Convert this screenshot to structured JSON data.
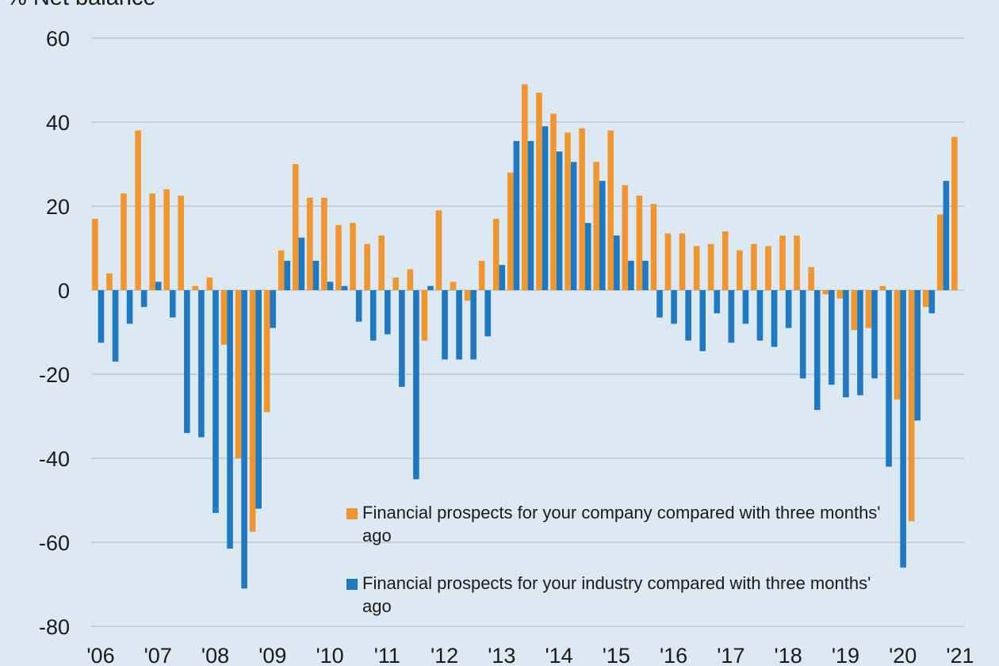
{
  "chart_data": {
    "type": "bar",
    "title": "",
    "ylabel": "% Net balance",
    "xlabel": "",
    "ylim": [
      -80,
      60
    ],
    "yticks": [
      60,
      40,
      20,
      0,
      -20,
      -40,
      -60,
      -80
    ],
    "grid": true,
    "legend_position": "bottom-right inside plot",
    "year_labels": [
      "'06",
      "'07",
      "'08",
      "'09",
      "'10",
      "'11",
      "'12",
      "'13",
      "'14",
      "'15",
      "'16",
      "'17",
      "'18",
      "'19",
      "'20",
      "'21"
    ],
    "categories": [
      "2006 Q1",
      "2006 Q2",
      "2006 Q3",
      "2006 Q4",
      "2007 Q1",
      "2007 Q2",
      "2007 Q3",
      "2007 Q4",
      "2008 Q1",
      "2008 Q2",
      "2008 Q3",
      "2008 Q4",
      "2009 Q1",
      "2009 Q2",
      "2009 Q3",
      "2009 Q4",
      "2010 Q1",
      "2010 Q2",
      "2010 Q3",
      "2010 Q4",
      "2011 Q1",
      "2011 Q2",
      "2011 Q3",
      "2011 Q4",
      "2012 Q1",
      "2012 Q2",
      "2012 Q3",
      "2012 Q4",
      "2013 Q1",
      "2013 Q2",
      "2013 Q3",
      "2013 Q4",
      "2014 Q1",
      "2014 Q2",
      "2014 Q3",
      "2014 Q4",
      "2015 Q1",
      "2015 Q2",
      "2015 Q3",
      "2015 Q4",
      "2016 Q1",
      "2016 Q2",
      "2016 Q3",
      "2016 Q4",
      "2017 Q1",
      "2017 Q2",
      "2017 Q3",
      "2017 Q4",
      "2018 Q1",
      "2018 Q2",
      "2018 Q3",
      "2018 Q4",
      "2019 Q1",
      "2019 Q2",
      "2019 Q3",
      "2019 Q4",
      "2020 Q1",
      "2020 Q2",
      "2020 Q3",
      "2020 Q4",
      "2021 Q1"
    ],
    "series": [
      {
        "name": "Financial prospects for your company compared with three months' ago",
        "color": "#f0962e",
        "values": [
          17,
          4,
          23,
          38,
          23,
          24,
          22.5,
          1,
          3,
          -13,
          -40,
          -57.5,
          -29,
          9.5,
          30,
          22,
          22,
          15.5,
          16,
          11,
          13,
          3,
          5,
          -12,
          19,
          2,
          -2.5,
          7,
          17,
          28,
          49,
          47,
          42,
          37.5,
          38.5,
          30.5,
          38,
          25,
          22.5,
          20.5,
          13.5,
          13.5,
          10.5,
          11,
          14,
          9.5,
          11,
          10.5,
          13,
          13,
          5.5,
          -1,
          -2,
          -9.5,
          -9,
          1,
          -26,
          -55,
          -4,
          18,
          36.5
        ]
      },
      {
        "name": "Financial prospects for your industry compared with three months' ago",
        "color": "#1e78c2",
        "values": [
          -12.5,
          -17,
          -8,
          -4,
          2,
          -6.5,
          -34,
          -35,
          -53,
          -61.5,
          -71,
          -52,
          -9,
          7,
          12.5,
          7,
          2,
          1,
          -7.5,
          -12,
          -10.5,
          -23,
          -45,
          1,
          -16.5,
          -16.5,
          -16.5,
          -11,
          6,
          35.5,
          35.5,
          39,
          33,
          30.5,
          16,
          26,
          13,
          7,
          7,
          -6.5,
          -8,
          -12,
          -14.5,
          -5.5,
          -12.5,
          -8,
          -12,
          -13.5,
          -9,
          -21,
          -28.5,
          -22.5,
          -25.5,
          -25,
          -21,
          -42,
          -66,
          -31,
          -5.5,
          26,
          0
        ]
      }
    ]
  }
}
